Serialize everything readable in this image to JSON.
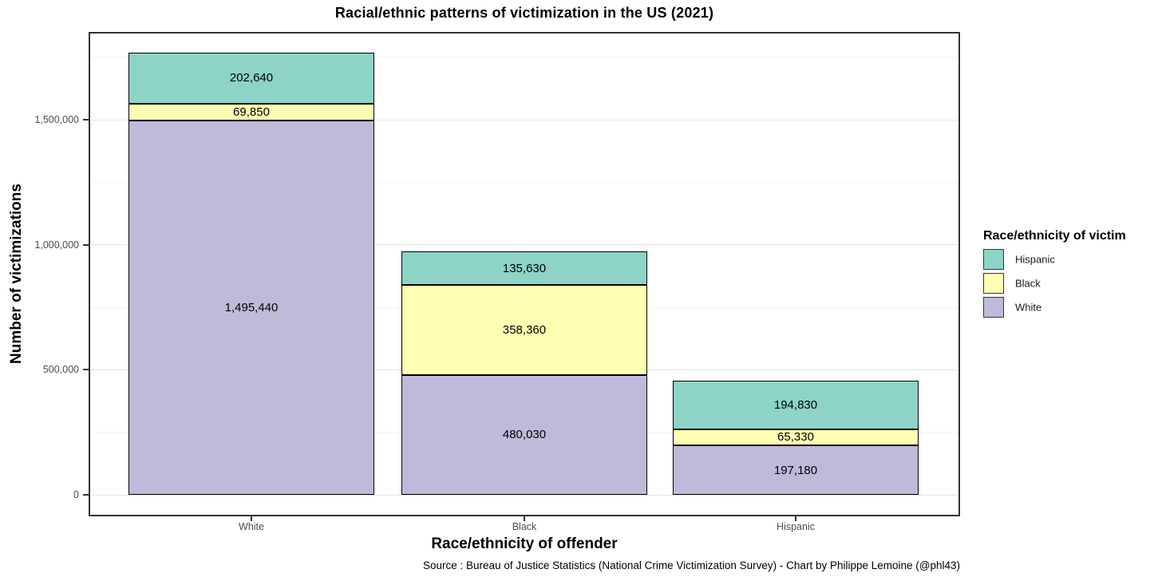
{
  "caption": "Source : Bureau of Justice Statistics (National Crime Victimization Survey) - Chart by Philippe Lemoine (@phl43)",
  "chart_data": {
    "type": "bar",
    "stacked": true,
    "title": "Racial/ethnic patterns of victimization in the US (2021)",
    "xlabel": "Race/ethnicity of offender",
    "ylabel": "Number of victimizations",
    "categories": [
      "White",
      "Black",
      "Hispanic"
    ],
    "series": [
      {
        "name": "White",
        "color": "#BEBADA",
        "values": [
          1495440,
          480030,
          197180
        ]
      },
      {
        "name": "Black",
        "color": "#FFFFB3",
        "values": [
          69850,
          358360,
          65330
        ]
      },
      {
        "name": "Hispanic",
        "color": "#8DD3C7",
        "values": [
          202640,
          135630,
          194830
        ]
      }
    ],
    "stack_order_bottom_to_top": [
      "White",
      "Black",
      "Hispanic"
    ],
    "data_labels": true,
    "ylim": [
      0,
      1850000
    ],
    "yticks": {
      "values": [
        0,
        500000,
        1000000,
        1500000
      ],
      "labels": [
        "0",
        "500,000",
        "1,000,000",
        "1,500,000"
      ]
    },
    "minor_gridline_values": [
      250000,
      750000,
      1250000,
      1750000
    ],
    "grid": true,
    "legend": {
      "title": "Race/ethnicity of victim",
      "position": "right",
      "entries": [
        "Hispanic",
        "Black",
        "White"
      ]
    }
  },
  "colors": {
    "victim_hispanic": "#8DD3C7",
    "victim_black": "#FFFFB3",
    "victim_white": "#BEBADA",
    "panel_border": "#333333",
    "grid_major": "#e6e6e6",
    "grid_minor": "#f3f3f3",
    "tick_label": "#4d4d4d",
    "bar_border": "#000000"
  }
}
